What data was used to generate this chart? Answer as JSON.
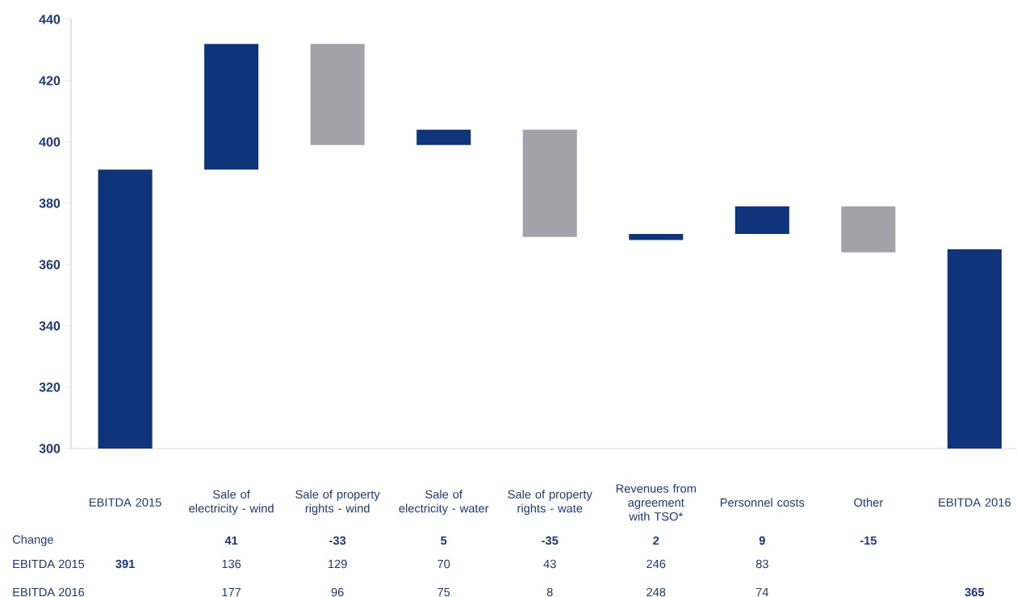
{
  "chart_data": [
    {
      "type": "bar",
      "categories": [
        "EBITDA 2015",
        "Sale of electricity - wind",
        "Sale of property rights - wind",
        "Sale of electricity - water",
        "Sale of property rights - wate",
        "Revenues from agreement with TSO*",
        "Personnel costs",
        "Other",
        "EBITDA 2016"
      ],
      "values": [
        391,
        41,
        -33,
        5,
        -35,
        2,
        9,
        -15,
        365
      ],
      "base": [
        null,
        391,
        432,
        399,
        404,
        368,
        370,
        379,
        null
      ],
      "value_labels": [
        null,
        "41",
        "-33",
        "5",
        "-35",
        "2",
        "9",
        "-15",
        null
      ],
      "colors": [
        "#0f347b",
        "#0f347b",
        "#a3a1a9",
        "#0f347b",
        "#a3a1a9",
        "#0f347b",
        "#0f347b",
        "#a3a1a9",
        "#0f347b"
      ],
      "ylim": [
        300,
        440
      ],
      "yticks": [
        300,
        320,
        340,
        360,
        380,
        400,
        420,
        440
      ],
      "grid": false
    },
    {
      "type": "other",
      "annotations": [
        "Change",
        "EBITDA 2015",
        "391",
        "136",
        "129",
        "70",
        "43",
        "246",
        "83",
        "EBITDA 2016",
        "177",
        "96",
        "75",
        "8",
        "248",
        "74",
        "365"
      ]
    }
  ]
}
